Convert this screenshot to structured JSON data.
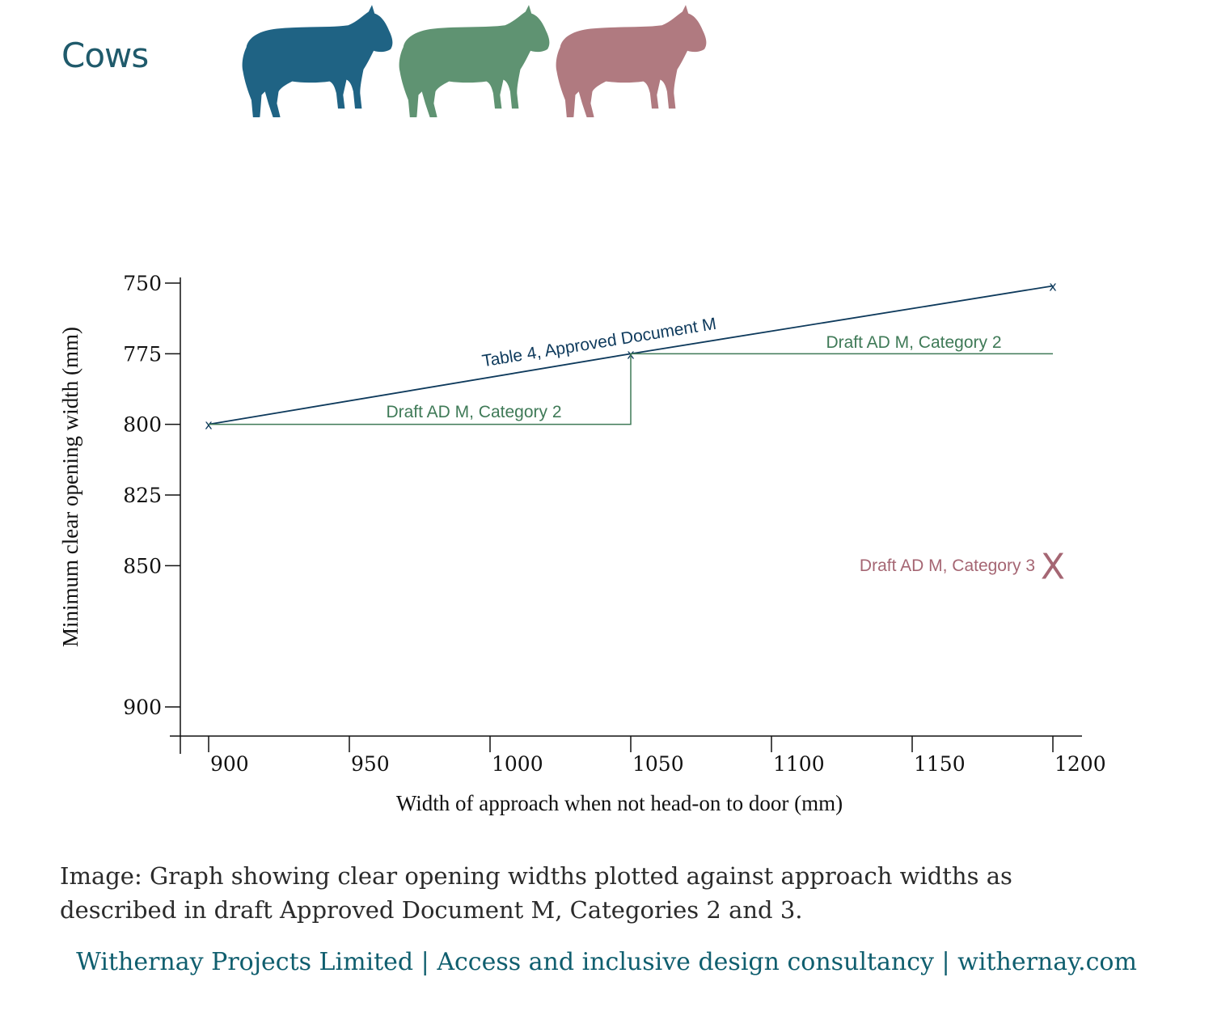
{
  "header": {
    "title": "Cows",
    "cow_colors": [
      "#1f6384",
      "#5f9372",
      "#b07a80"
    ]
  },
  "chart_data": {
    "type": "line",
    "xlabel": "Width of approach when not head-on to door (mm)",
    "ylabel": "Minimum clear opening width (mm)",
    "xlim": [
      890,
      1210
    ],
    "ylim": [
      750,
      900
    ],
    "y_inverted": true,
    "x_ticks": [
      900,
      950,
      1000,
      1050,
      1100,
      1150,
      1200
    ],
    "y_ticks": [
      750,
      775,
      800,
      825,
      850,
      900
    ],
    "series": [
      {
        "name": "Table 4, Approved Document M",
        "color": "#0e3a5c",
        "style": "line-with-x-markers",
        "points": [
          [
            900,
            800
          ],
          [
            1050,
            775
          ],
          [
            1200,
            751
          ]
        ]
      },
      {
        "name": "Draft AD M, Category 2",
        "color": "#3f7a57",
        "style": "step",
        "points": [
          [
            900,
            800
          ],
          [
            1050,
            800
          ],
          [
            1050,
            775
          ],
          [
            1200,
            775
          ]
        ]
      },
      {
        "name": "Draft AD M, Category 3",
        "color": "#a56673",
        "style": "marker",
        "points": [
          [
            1200,
            850
          ]
        ]
      }
    ],
    "annotations": [
      {
        "text": "Table 4, Approved Document M",
        "series": 0
      },
      {
        "text": "Draft AD M, Category 2",
        "series": 1
      },
      {
        "text": "Draft AD M, Category 2",
        "series": 1
      },
      {
        "text": "Draft AD M, Category 3",
        "series": 2
      }
    ]
  },
  "caption": "Image: Graph showing clear opening widths plotted against approach widths as described in draft Approved Document M, Categories 2 and 3.",
  "footer": "Withernay Projects Limited | Access and inclusive design consultancy | withernay.com"
}
